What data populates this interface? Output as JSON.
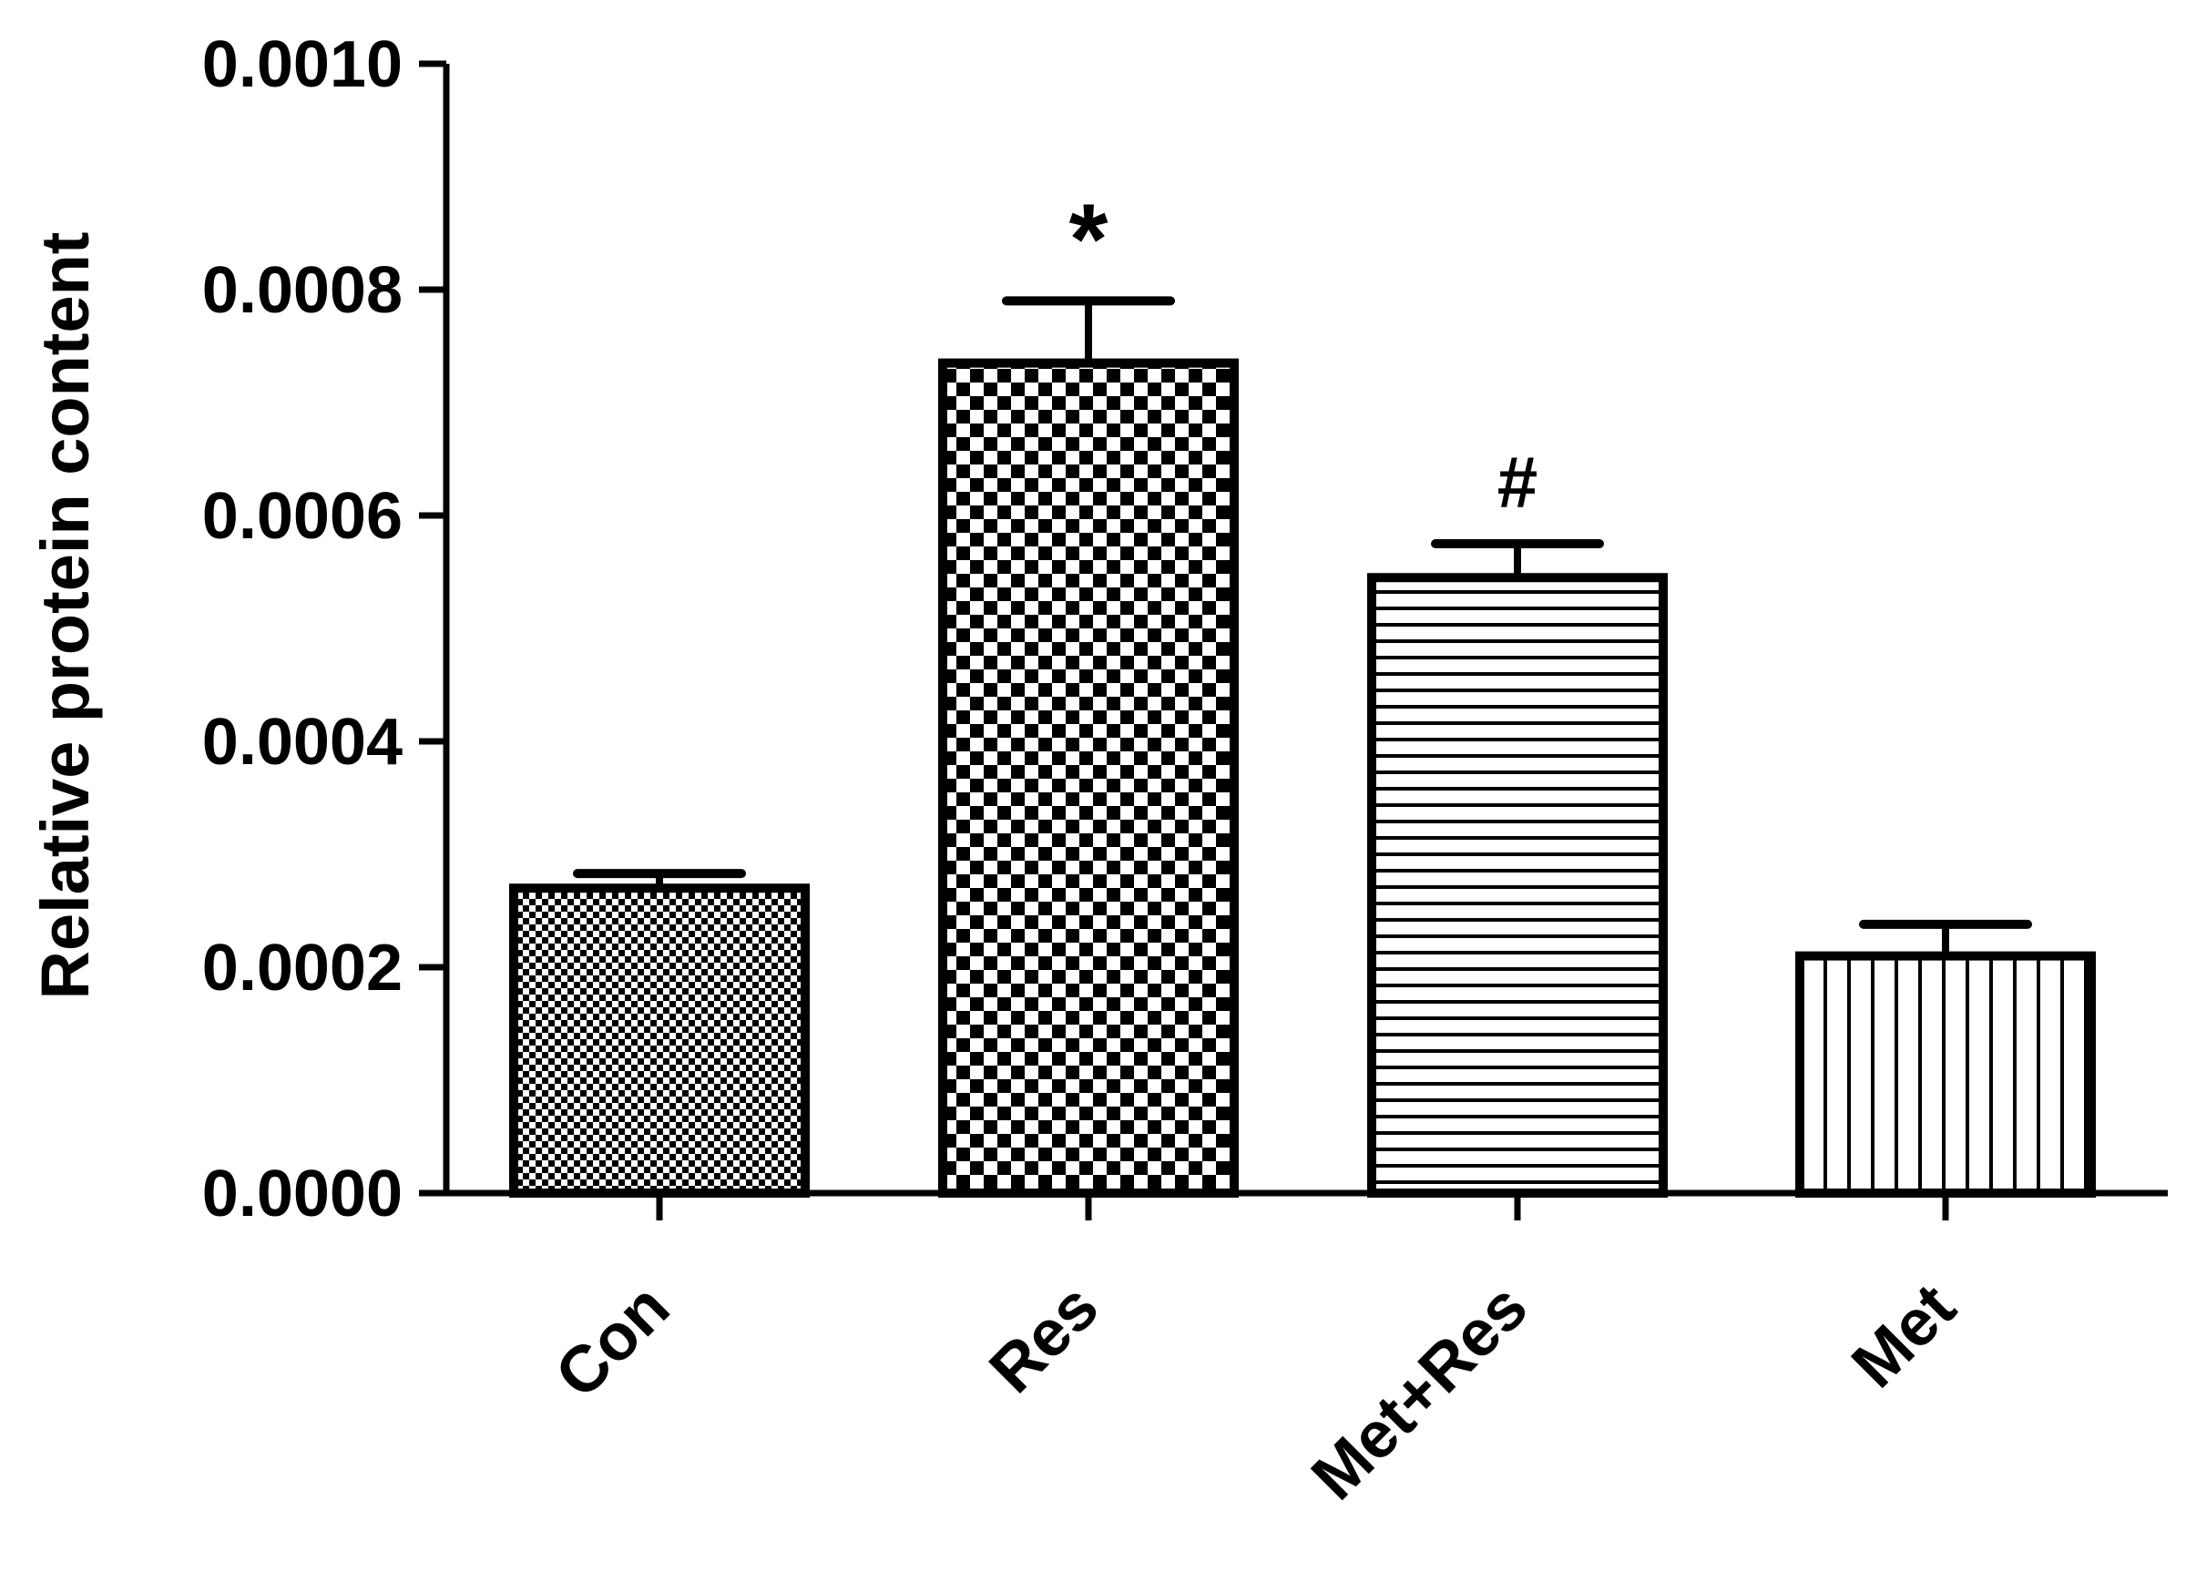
{
  "chart_data": {
    "type": "bar",
    "categories": [
      "Con",
      "Res",
      "Met+Res",
      "Met"
    ],
    "values": [
      0.00027,
      0.000735,
      0.000545,
      0.00021
    ],
    "errors": [
      1.3e-05,
      5.5e-05,
      3e-05,
      2.8e-05
    ],
    "annotations": [
      "",
      "*",
      "#",
      ""
    ],
    "patterns": [
      "fine-checker",
      "checker",
      "horizontal-lines",
      "vertical-lines"
    ],
    "ylabel": "Relative protein content",
    "xlabel": "",
    "title": "",
    "ylim": [
      0,
      0.001
    ],
    "yticks": [
      "0.0000",
      "0.0002",
      "0.0004",
      "0.0006",
      "0.0008",
      "0.0010"
    ],
    "ytick_values": [
      0,
      0.0002,
      0.0004,
      0.0006,
      0.0008,
      0.001
    ],
    "colors": {
      "bar_edge": "#000000",
      "fill": "#ffffff"
    }
  }
}
